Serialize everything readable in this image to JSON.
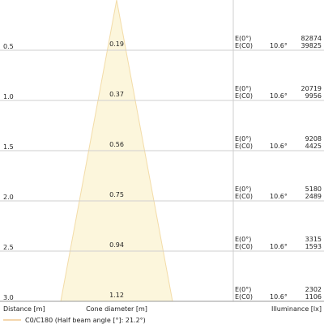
{
  "rows": [
    {
      "distance": "0.5",
      "diameter": "0.19",
      "e0_label": "E(0°)",
      "ec0_label": "E(C0)",
      "angle": "10.6°",
      "e0": "82874",
      "ec0": "39825"
    },
    {
      "distance": "1.0",
      "diameter": "0.37",
      "e0_label": "E(0°)",
      "ec0_label": "E(C0)",
      "angle": "10.6°",
      "e0": "20719",
      "ec0": "9956"
    },
    {
      "distance": "1.5",
      "diameter": "0.56",
      "e0_label": "E(0°)",
      "ec0_label": "E(C0)",
      "angle": "10.6°",
      "e0": "9208",
      "ec0": "4425"
    },
    {
      "distance": "2.0",
      "diameter": "0.75",
      "e0_label": "E(0°)",
      "ec0_label": "E(C0)",
      "angle": "10.6°",
      "e0": "5180",
      "ec0": "2489"
    },
    {
      "distance": "2.5",
      "diameter": "0.94",
      "e0_label": "E(0°)",
      "ec0_label": "E(C0)",
      "angle": "10.6°",
      "e0": "3315",
      "ec0": "1593"
    },
    {
      "distance": "3.0",
      "diameter": "1.12",
      "e0_label": "E(0°)",
      "ec0_label": "E(C0)",
      "angle": "10.6°",
      "e0": "2302",
      "ec0": "1106"
    }
  ],
  "footer": {
    "distance": "Distance [m]",
    "diameter": "Cone diameter [m]",
    "illuminance": "Illuminance [lx]"
  },
  "legend": "C0/C180 (Half beam angle [°]: 21.2°)"
}
